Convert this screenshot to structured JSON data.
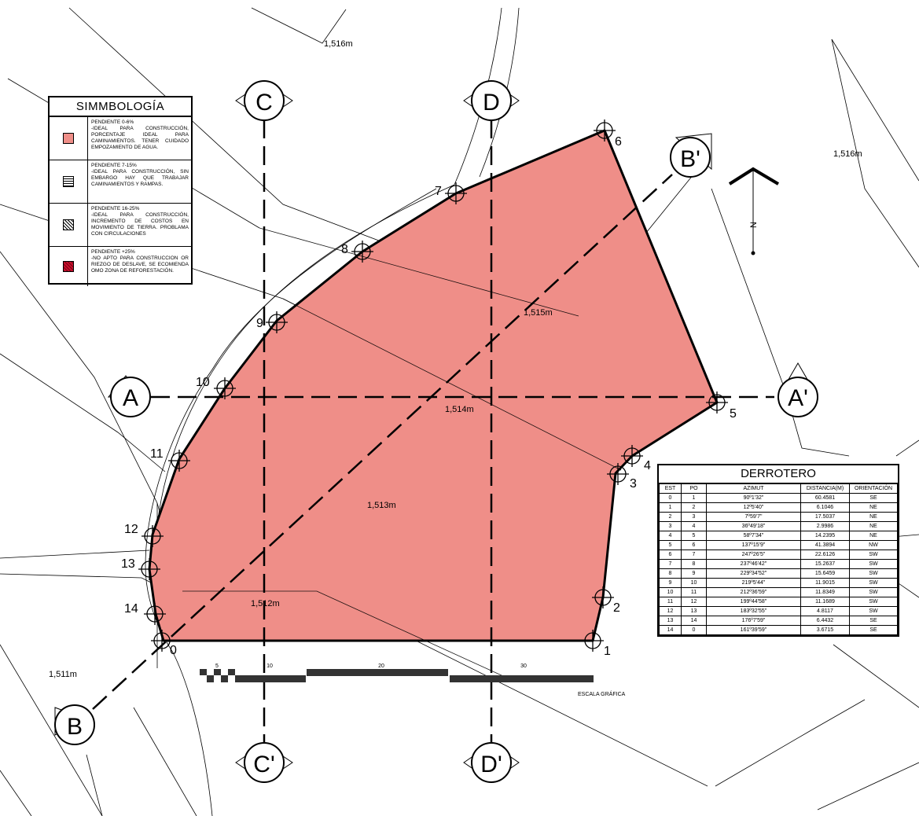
{
  "contours": [
    "1,516m",
    "1,516m",
    "1,515m",
    "1,514m",
    "1,513m",
    "1,512m",
    "1,511m"
  ],
  "sections": {
    "A": "A",
    "A_prime": "A'",
    "B": "B",
    "B_prime": "B'",
    "C": "C",
    "C_prime": "C'",
    "D": "D",
    "D_prime": "D'"
  },
  "points": [
    "0",
    "1",
    "2",
    "3",
    "4",
    "5",
    "6",
    "7",
    "8",
    "9",
    "10",
    "11",
    "12",
    "13",
    "14"
  ],
  "north": {
    "label": "N",
    "icon": "north-arrow-icon"
  },
  "scale": {
    "ticks": [
      "5",
      "10",
      "20",
      "30"
    ],
    "caption": "ESCALA GRÁFICA"
  },
  "colors": {
    "terrain": "#ef8e88",
    "outline": "#000000",
    "steep": "#c8102e"
  },
  "legend": {
    "title": "SIMMBOLOGÍA",
    "items": [
      {
        "icon": "pink-swatch-icon",
        "title": "PENDIENTE 0-6%",
        "text": "-IDEAL PARA CONSTRUCCIÓN, PORCENTAJE IDEAL PARA CAMINAMIENTOS. TENER CUIDADO EMPOZAMIENTO DE AGUA."
      },
      {
        "icon": "horizontal-hatch-icon",
        "title": "PENDIENTE 7-15%",
        "text": "-IDEAL PARA CONSTRUCCIÓN, SIN EMBARGO HAY QUE TRABAJAR CAMINAMIENTOS Y RAMPAS."
      },
      {
        "icon": "cross-hatch-icon",
        "title": "PENDIENTE 16-25%",
        "text": "-IDEAL PARA CONSTRUCCIÓN, INCREMENTO DE COSTOS EN MOVIMIENTO DE TIERRA. PROBLAMA CON CIRCULACIONES"
      },
      {
        "icon": "red-hatch-icon",
        "title": "PENDIENTE +25%",
        "text": "-NO APTO PARA CONSTRUCCION OR RIEZGO DE DESLAVE, SE ECOMIENDA OMO ZONA DE REFORESTACIÓN."
      }
    ]
  },
  "derrotero": {
    "title": "DERROTERO",
    "headers": [
      "EST",
      "PO",
      "AZIMUT",
      "DISTANCIA(M)",
      "ORIENTACIÓN"
    ],
    "rows": [
      [
        "0",
        "1",
        "90º1'32\"",
        "60.4581",
        "SE"
      ],
      [
        "1",
        "2",
        "12º5'40\"",
        "6.1046",
        "NE"
      ],
      [
        "2",
        "3",
        "7º59'7\"",
        "17.5037",
        "NE"
      ],
      [
        "3",
        "4",
        "36º49'18\"",
        "2.9986",
        "NE"
      ],
      [
        "4",
        "5",
        "58º7'34\"",
        "14.2395",
        "NE"
      ],
      [
        "5",
        "6",
        "137º15'9\"",
        "41.3894",
        "NW"
      ],
      [
        "6",
        "7",
        "247º26'5\"",
        "22.6126",
        "SW"
      ],
      [
        "7",
        "8",
        "237º46'42\"",
        "15.2637",
        "SW"
      ],
      [
        "8",
        "9",
        "229º34'52\"",
        "15.6459",
        "SW"
      ],
      [
        "9",
        "10",
        "219º5'44\"",
        "11.9015",
        "SW"
      ],
      [
        "10",
        "11",
        "212º36'59\"",
        "11.8349",
        "SW"
      ],
      [
        "11",
        "12",
        "199º44'58\"",
        "11.1689",
        "SW"
      ],
      [
        "12",
        "13",
        "183º32'55\"",
        "4.8117",
        "SW"
      ],
      [
        "13",
        "14",
        "176º7'59\"",
        "6.4432",
        "SE"
      ],
      [
        "14",
        "0",
        "161º39'59\"",
        "3.6715",
        "SE"
      ]
    ]
  }
}
